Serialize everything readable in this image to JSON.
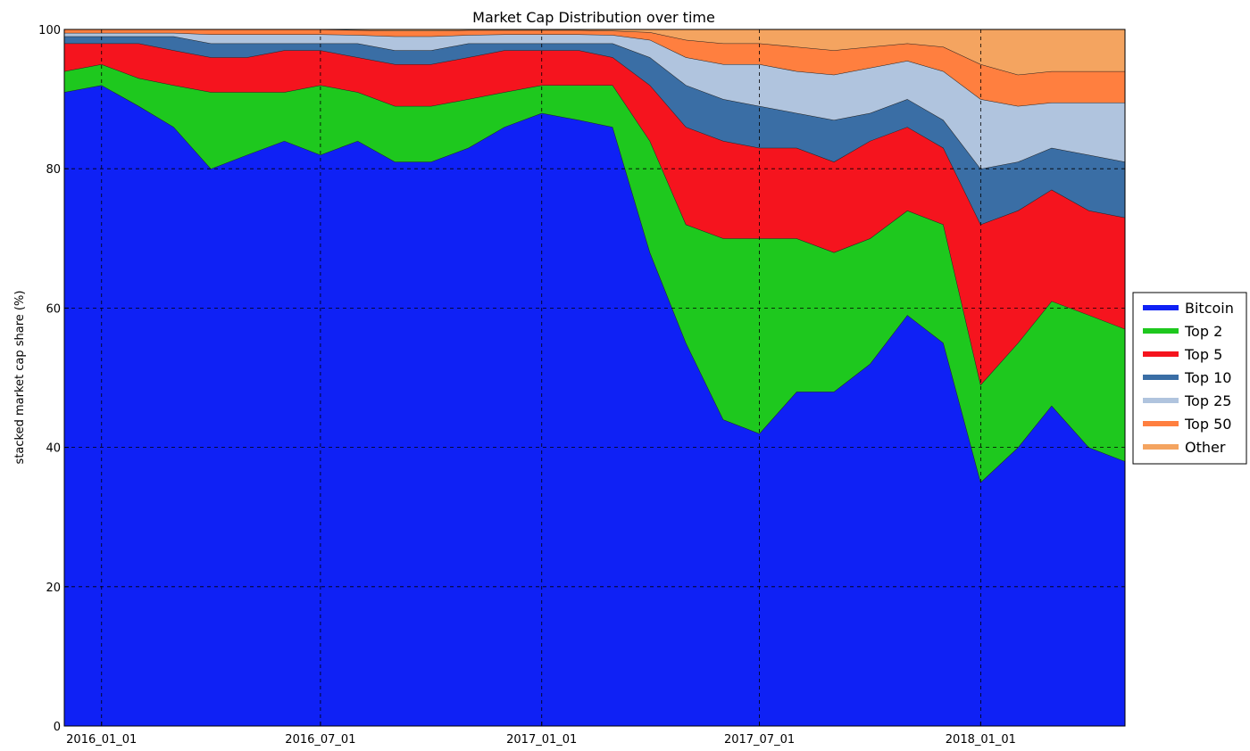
{
  "chart_data": {
    "type": "area",
    "stacked": true,
    "title": "Market Cap Distribution over time",
    "xlabel": "",
    "ylabel": "stacked market cap share (%)",
    "ylim": [
      0,
      100
    ],
    "yticks": [
      0,
      20,
      40,
      60,
      80,
      100
    ],
    "xlim": [
      "2015-12-01",
      "2018-05-01"
    ],
    "xticks": [
      "2016_01_01",
      "2016_07_01",
      "2017_01_01",
      "2017_07_01",
      "2018_01_01"
    ],
    "x": [
      "2015-12-01",
      "2016-01-01",
      "2016-02-01",
      "2016-03-01",
      "2016-04-01",
      "2016-05-01",
      "2016-06-01",
      "2016-07-01",
      "2016-08-01",
      "2016-09-01",
      "2016-10-01",
      "2016-11-01",
      "2016-12-01",
      "2017-01-01",
      "2017-02-01",
      "2017-03-01",
      "2017-04-01",
      "2017-05-01",
      "2017-06-01",
      "2017-07-01",
      "2017-08-01",
      "2017-09-01",
      "2017-10-01",
      "2017-11-01",
      "2017-12-01",
      "2018-01-01",
      "2018-02-01",
      "2018-03-01",
      "2018-04-01",
      "2018-05-01"
    ],
    "grid": true,
    "legend_position": "right",
    "series": [
      {
        "name": "Bitcoin",
        "color": "#0f21f5",
        "values": [
          91,
          92,
          89,
          86,
          80,
          82,
          84,
          82,
          84,
          81,
          81,
          83,
          86,
          88,
          87,
          86,
          68,
          55,
          44,
          42,
          48,
          48,
          52,
          59,
          55,
          35,
          40,
          46,
          40,
          38
        ]
      },
      {
        "name": "Top 2",
        "color": "#1ec81e",
        "values": [
          94,
          95,
          93,
          92,
          91,
          91,
          91,
          92,
          91,
          89,
          89,
          90,
          91,
          92,
          92,
          92,
          84,
          72,
          70,
          70,
          70,
          68,
          70,
          74,
          72,
          49,
          55,
          61,
          59,
          57
        ]
      },
      {
        "name": "Top 5",
        "color": "#f5141e",
        "values": [
          98,
          98,
          98,
          97,
          96,
          96,
          97,
          97,
          96,
          95,
          95,
          96,
          97,
          97,
          97,
          96,
          92,
          86,
          84,
          83,
          83,
          81,
          84,
          86,
          83,
          72,
          74,
          77,
          74,
          73
        ]
      },
      {
        "name": "Top 10",
        "color": "#3a6ea5",
        "values": [
          99,
          99,
          99,
          99,
          98,
          98,
          98,
          98,
          98,
          97,
          97,
          98,
          98,
          98,
          98,
          98,
          96,
          92,
          90,
          89,
          88,
          87,
          88,
          90,
          87,
          80,
          81,
          83,
          82,
          81
        ]
      },
      {
        "name": "Top 25",
        "color": "#b0c4de",
        "values": [
          99.5,
          99.5,
          99.5,
          99.5,
          99.3,
          99.3,
          99.3,
          99.3,
          99.2,
          99,
          99,
          99.2,
          99.3,
          99.3,
          99.3,
          99.2,
          98.5,
          96,
          95,
          95,
          94,
          93.5,
          94.5,
          95.5,
          94,
          90,
          89,
          89.5,
          89.5,
          89.5
        ]
      },
      {
        "name": "Top 50",
        "color": "#ff7f3f",
        "values": [
          100,
          100,
          100,
          100,
          100,
          100,
          100,
          100,
          99.9,
          99.8,
          99.8,
          99.9,
          99.9,
          99.9,
          99.9,
          99.8,
          99.6,
          98.5,
          98,
          98,
          97.5,
          97,
          97.5,
          98,
          97.5,
          95,
          93.5,
          94,
          94,
          94
        ]
      },
      {
        "name": "Other",
        "color": "#f4a460",
        "values": [
          100,
          100,
          100,
          100,
          100,
          100,
          100,
          100,
          100,
          100,
          100,
          100,
          100,
          100,
          100,
          100,
          100,
          100,
          100,
          100,
          100,
          100,
          100,
          100,
          100,
          100,
          100,
          100,
          100,
          100
        ]
      }
    ]
  }
}
